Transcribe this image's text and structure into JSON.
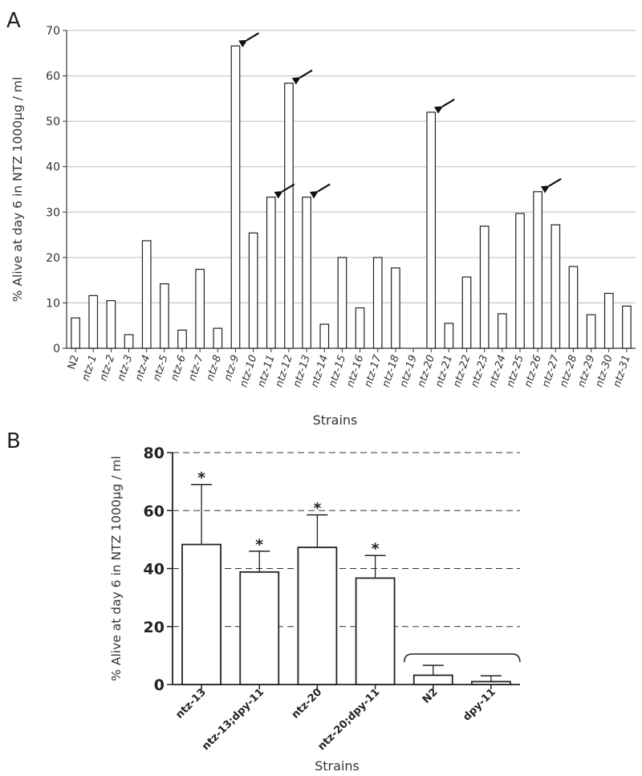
{
  "chart_data": [
    {
      "panel": "A",
      "type": "bar",
      "title": "",
      "xlabel": "Strains",
      "ylabel": "% Alive at day 6 in NTZ 1000µg / ml",
      "ylim": [
        0,
        70
      ],
      "yticks": [
        0,
        10,
        20,
        30,
        40,
        50,
        60,
        70
      ],
      "grid": true,
      "categories": [
        "N2",
        "ntz-1",
        "ntz-2",
        "ntz-3",
        "ntz-4",
        "ntz-5",
        "ntz-6",
        "ntz-7",
        "ntz-8",
        "ntz-9",
        "ntz-10",
        "ntz-11",
        "ntz-12",
        "ntz-13",
        "ntz-14",
        "ntz-15",
        "ntz-16",
        "ntz-17",
        "ntz-18",
        "ntz-19",
        "ntz-20",
        "ntz-21",
        "ntz-22",
        "ntz-23",
        "ntz-24",
        "ntz-25",
        "ntz-26",
        "ntz-27",
        "ntz-28",
        "ntz-29",
        "ntz-30",
        "ntz-31"
      ],
      "values": [
        6.7,
        11.6,
        10.5,
        3.0,
        23.7,
        14.2,
        4.0,
        17.4,
        4.4,
        66.6,
        25.4,
        33.3,
        58.4,
        33.3,
        5.3,
        20.0,
        8.9,
        20.0,
        17.7,
        0,
        52.0,
        5.5,
        15.7,
        26.9,
        7.6,
        29.7,
        34.5,
        27.2,
        18.0,
        7.4,
        12.1,
        9.3
      ],
      "annotations": {
        "arrows_at": [
          "ntz-9",
          "ntz-11",
          "ntz-12",
          "ntz-13",
          "ntz-20",
          "ntz-26"
        ]
      }
    },
    {
      "panel": "B",
      "type": "bar",
      "title": "",
      "xlabel": "Strains",
      "ylabel": "% Alive at day 6 in NTZ 1000µg / ml",
      "ylim": [
        0,
        80
      ],
      "yticks": [
        0,
        20,
        40,
        60,
        80
      ],
      "grid": "dashed",
      "categories": [
        "ntz-13",
        "ntz-13;dpy-11",
        "ntz-20",
        "ntz-20;dpy-11",
        "N2",
        "dpy-11"
      ],
      "values": [
        48.3,
        38.8,
        47.3,
        36.7,
        3.2,
        1.0
      ],
      "error_upper": [
        69.0,
        46.0,
        58.5,
        44.5,
        6.6,
        3.0
      ],
      "significance": [
        "*",
        "*",
        "*",
        "*",
        "",
        ""
      ],
      "bracket_over": [
        "N2",
        "dpy-11"
      ]
    }
  ],
  "panels": {
    "a": {
      "letter": "A"
    },
    "b": {
      "letter": "B"
    }
  }
}
